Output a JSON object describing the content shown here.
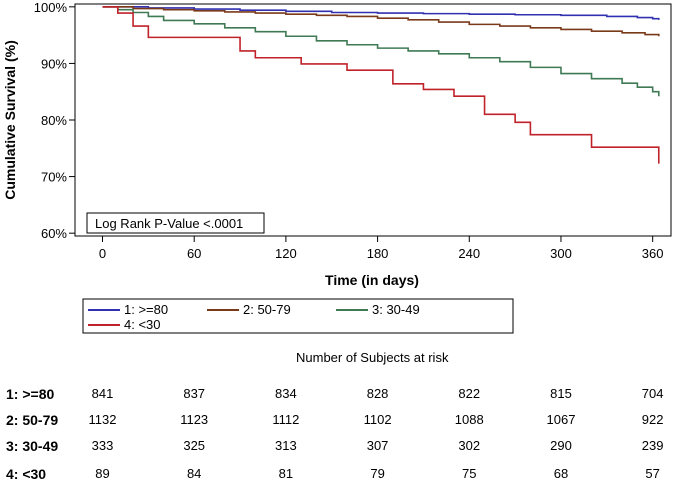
{
  "chart_data": {
    "type": "line",
    "style": "step",
    "ylabel": "Cumulative Survival (%)",
    "xlabel": "Time (in days)",
    "x_ticks": [
      0,
      60,
      120,
      180,
      240,
      300,
      360
    ],
    "y_ticks": [
      60,
      70,
      80,
      90,
      100
    ],
    "y_tick_labels": [
      "60%",
      "70%",
      "80%",
      "90%",
      "100%"
    ],
    "xlim": [
      -18,
      372
    ],
    "ylim": [
      59.5,
      100.5
    ],
    "annotation": "Log Rank P-Value <.0001",
    "legend_position": "bottom",
    "series": [
      {
        "name": "1: >=80",
        "color": "#3030b0",
        "x": [
          0,
          30,
          60,
          90,
          120,
          150,
          180,
          210,
          240,
          270,
          300,
          330,
          350,
          360,
          364
        ],
        "y": [
          100,
          99.8,
          99.6,
          99.4,
          99.2,
          99.0,
          98.9,
          98.8,
          98.7,
          98.6,
          98.5,
          98.3,
          98.1,
          97.9,
          97.7
        ]
      },
      {
        "name": "2: 50-79",
        "color": "#7a3a1a",
        "x": [
          0,
          20,
          40,
          60,
          80,
          100,
          120,
          140,
          160,
          180,
          200,
          220,
          240,
          260,
          280,
          300,
          320,
          340,
          355,
          364
        ],
        "y": [
          100,
          99.7,
          99.5,
          99.3,
          99.1,
          98.9,
          98.7,
          98.5,
          98.3,
          98.0,
          97.7,
          97.3,
          96.9,
          96.6,
          96.3,
          96.0,
          95.7,
          95.4,
          95.1,
          94.8
        ]
      },
      {
        "name": "3: 30-49",
        "color": "#3f7a55",
        "x": [
          0,
          10,
          20,
          30,
          40,
          60,
          80,
          100,
          120,
          140,
          160,
          180,
          200,
          220,
          240,
          260,
          280,
          300,
          320,
          340,
          350,
          360,
          364
        ],
        "y": [
          100,
          99.5,
          99.0,
          98.3,
          97.6,
          97.0,
          96.3,
          95.6,
          94.8,
          94.0,
          93.3,
          92.7,
          92.2,
          91.7,
          91.0,
          90.3,
          89.3,
          88.2,
          87.3,
          86.5,
          85.8,
          85.0,
          84.2
        ]
      },
      {
        "name": "4: <30",
        "color": "#c0222a",
        "x": [
          0,
          10,
          20,
          30,
          60,
          90,
          100,
          130,
          160,
          190,
          210,
          230,
          250,
          270,
          280,
          300,
          320,
          364
        ],
        "y": [
          100,
          98.9,
          96.6,
          94.6,
          94.6,
          92.2,
          91.0,
          89.9,
          88.8,
          86.4,
          85.4,
          84.2,
          81.0,
          79.6,
          77.4,
          77.4,
          75.2,
          72.3
        ]
      }
    ]
  },
  "risk_table": {
    "title": "Number of Subjects at risk",
    "rows": [
      {
        "label": "1: >=80",
        "values": [
          841,
          837,
          834,
          828,
          822,
          815,
          704
        ]
      },
      {
        "label": "2: 50-79",
        "values": [
          1132,
          1123,
          1112,
          1102,
          1088,
          1067,
          922
        ]
      },
      {
        "label": "3: 30-49",
        "values": [
          333,
          325,
          313,
          307,
          302,
          290,
          239
        ]
      },
      {
        "label": "4: <30",
        "values": [
          89,
          84,
          81,
          79,
          75,
          68,
          57
        ]
      }
    ]
  }
}
